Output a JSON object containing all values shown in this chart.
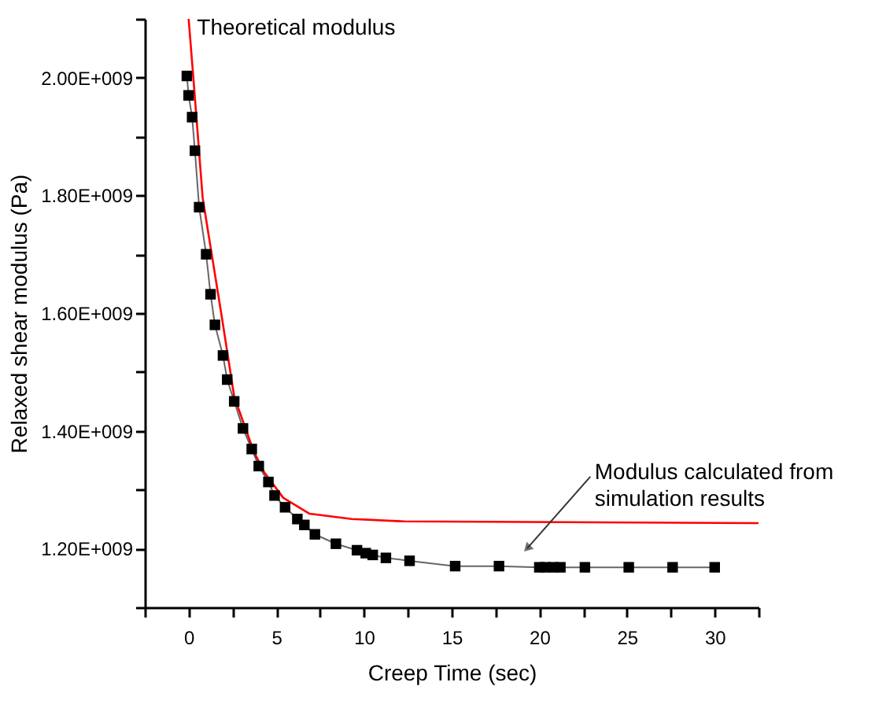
{
  "chart_data": {
    "type": "line",
    "xlabel": "Creep Time (sec)",
    "ylabel": "Relaxed shear modulus (Pa)",
    "xlim": [
      -2.5,
      32.5
    ],
    "xticks": [
      {
        "value": -2.5,
        "label": null
      },
      0,
      {
        "value": 2.5,
        "label": null
      },
      5,
      {
        "value": 7.5,
        "label": null
      },
      10,
      {
        "value": 12.5,
        "label": null
      },
      15,
      {
        "value": 17.5,
        "label": null
      },
      20,
      {
        "value": 22.5,
        "label": null
      },
      25,
      {
        "value": 27.5,
        "label": null
      },
      30,
      {
        "value": 32.5,
        "label": null
      }
    ],
    "ylim": [
      1100000000,
      2100000000
    ],
    "yticks": [
      {
        "value": 1100000000,
        "label": null
      },
      {
        "value": 1200000000,
        "label": "1.20E+009"
      },
      {
        "value": 1300000000,
        "label": null
      },
      {
        "value": 1400000000,
        "label": "1.40E+009"
      },
      {
        "value": 1500000000,
        "label": null
      },
      {
        "value": 1600000000,
        "label": "1.60E+009"
      },
      {
        "value": 1700000000,
        "label": null
      },
      {
        "value": 1800000000,
        "label": "1.80E+009"
      },
      {
        "value": 1900000000,
        "label": null
      },
      {
        "value": 2000000000,
        "label": "2.00E+009"
      },
      {
        "value": 2100000000,
        "label": null
      }
    ],
    "grid": false,
    "series": [
      {
        "color": "#ff0000",
        "x": [
          0,
          0.27,
          0.8,
          1.9,
          2.6,
          3.7,
          4.3,
          5.4,
          6.9,
          9.3,
          12.3,
          32.5
        ],
        "values": [
          2100000000,
          2000000000,
          1796000000,
          1592000000,
          1458000000,
          1366000000,
          1330000000,
          1286000000,
          1259000000,
          1250000000,
          1246000000,
          1243000000
        ]
      },
      {
        "color": "#000000",
        "marker": "square",
        "x": [
          -0.1,
          0,
          0.2,
          0.36,
          0.6,
          1.0,
          1.25,
          1.5,
          1.96,
          2.2,
          2.6,
          3.1,
          3.6,
          4.0,
          4.55,
          4.9,
          5.5,
          6.2,
          6.6,
          7.2,
          8.4,
          9.6,
          10.1,
          10.5,
          11.25,
          12.6,
          15.2,
          17.7,
          20.0,
          20.35,
          20.8,
          21.2,
          22.6,
          25.1,
          27.6,
          30.0
        ],
        "values": [
          2003000000,
          1970000000,
          1933000000,
          1876000000,
          1780000000,
          1700000000,
          1632000000,
          1580000000,
          1528000000,
          1487000000,
          1450000000,
          1404000000,
          1369000000,
          1340000000,
          1313000000,
          1290000000,
          1270000000,
          1250000000,
          1240000000,
          1224000000,
          1208000000,
          1197000000,
          1192000000,
          1189000000,
          1184000000,
          1179000000,
          1170000000,
          1170000000,
          1168000000,
          1168000000,
          1168000000,
          1168000000,
          1168000000,
          1168000000,
          1168000000,
          1168000000
        ]
      }
    ],
    "annotations": [
      "Theoretical modulus",
      "Modulus calculated from simulation results"
    ]
  }
}
